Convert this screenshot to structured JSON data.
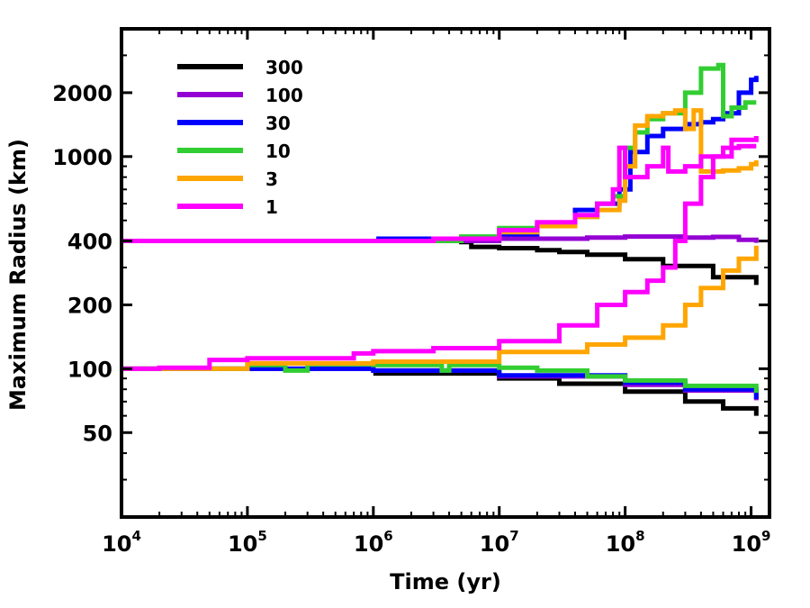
{
  "chart_data": {
    "type": "line",
    "xlabel": "Time (yr)",
    "ylabel": "Maximum Radius (km)",
    "xscale": "log",
    "yscale": "log",
    "xlim": [
      10000,
      1400000000
    ],
    "ylim": [
      20,
      4000
    ],
    "xticks": [
      {
        "value": 10000,
        "base": "10",
        "exp": "4"
      },
      {
        "value": 100000,
        "base": "10",
        "exp": "5"
      },
      {
        "value": 1000000,
        "base": "10",
        "exp": "6"
      },
      {
        "value": 10000000,
        "base": "10",
        "exp": "7"
      },
      {
        "value": 100000000,
        "base": "10",
        "exp": "8"
      },
      {
        "value": 1000000000,
        "base": "10",
        "exp": "9"
      }
    ],
    "yticks": [
      {
        "value": 50,
        "label": "50"
      },
      {
        "value": 100,
        "label": "100"
      },
      {
        "value": 200,
        "label": "200"
      },
      {
        "value": 400,
        "label": "400"
      },
      {
        "value": 1000,
        "label": "1000"
      },
      {
        "value": 2000,
        "label": "2000"
      }
    ],
    "legend_position": "top-left",
    "series": [
      {
        "name": "300",
        "color": "#000000",
        "runs": [
          [
            [
              10000,
              400
            ],
            [
              1000000,
              400
            ],
            [
              5000000,
              395
            ],
            [
              6000000,
              375
            ],
            [
              10000000,
              370
            ],
            [
              20000000,
              362
            ],
            [
              30000000,
              355
            ],
            [
              50000000,
              345
            ],
            [
              100000000,
              328
            ],
            [
              200000000,
              305
            ],
            [
              500000000,
              270
            ],
            [
              1100000000,
              248
            ]
          ],
          [
            [
              1000000,
              95
            ],
            [
              10000000,
              90
            ],
            [
              30000000,
              85
            ],
            [
              100000000,
              78
            ],
            [
              300000000,
              70
            ],
            [
              600000000,
              65
            ],
            [
              1100000000,
              60
            ]
          ]
        ]
      },
      {
        "name": "100",
        "color": "#9400d3",
        "runs": [
          [
            [
              10000,
              400
            ],
            [
              3000000,
              400
            ],
            [
              10000000,
              410
            ],
            [
              50000000,
              415
            ],
            [
              100000000,
              420
            ],
            [
              300000000,
              415
            ],
            [
              500000000,
              418
            ],
            [
              800000000,
              405
            ],
            [
              1100000000,
              392
            ]
          ],
          [
            [
              10000,
              100
            ],
            [
              1000000,
              98
            ],
            [
              10000000,
              92
            ],
            [
              100000000,
              84
            ],
            [
              300000000,
              79
            ],
            [
              1100000000,
              71
            ]
          ]
        ]
      },
      {
        "name": "30",
        "color": "#0000ff",
        "runs": [
          [
            [
              10000,
              400
            ],
            [
              1000000,
              400
            ],
            [
              1100000,
              410
            ],
            [
              5000000,
              415
            ],
            [
              10000000,
              430
            ],
            [
              20000000,
              470
            ],
            [
              40000000,
              560
            ],
            [
              60000000,
              600
            ],
            [
              90000000,
              700
            ],
            [
              110000000,
              1050
            ],
            [
              150000000,
              1250
            ],
            [
              200000000,
              1350
            ],
            [
              300000000,
              1420
            ],
            [
              400000000,
              1450
            ],
            [
              500000000,
              1500
            ],
            [
              600000000,
              1600
            ],
            [
              800000000,
              2000
            ],
            [
              1000000000,
              2300
            ],
            [
              1100000000,
              2400
            ]
          ],
          [
            [
              10000,
              100
            ],
            [
              1000000,
              98
            ],
            [
              10000000,
              93
            ],
            [
              100000000,
              86
            ],
            [
              300000000,
              80
            ],
            [
              1100000000,
              72
            ]
          ]
        ]
      },
      {
        "name": "10",
        "color": "#32cd32",
        "runs": [
          [
            [
              10000,
              400
            ],
            [
              2000000,
              400
            ],
            [
              5000000,
              420
            ],
            [
              10000000,
              460
            ],
            [
              20000000,
              480
            ],
            [
              40000000,
              520
            ],
            [
              60000000,
              600
            ],
            [
              80000000,
              650
            ],
            [
              100000000,
              1100
            ],
            [
              120000000,
              1300
            ],
            [
              150000000,
              1500
            ],
            [
              200000000,
              1600
            ],
            [
              300000000,
              2000
            ],
            [
              400000000,
              2600
            ],
            [
              550000000,
              2700
            ],
            [
              600000000,
              1550
            ],
            [
              700000000,
              1700
            ],
            [
              900000000,
              1800
            ],
            [
              1100000000,
              1800
            ]
          ],
          [
            [
              10000,
              100
            ],
            [
              100000,
              104
            ],
            [
              200000,
              98
            ],
            [
              300000,
              105
            ],
            [
              1000000,
              104
            ],
            [
              3000000,
              104
            ],
            [
              3500000,
              98
            ],
            [
              4000000,
              104
            ],
            [
              10000000,
              101
            ],
            [
              20000000,
              98
            ],
            [
              50000000,
              92
            ],
            [
              100000000,
              88
            ],
            [
              300000000,
              83
            ],
            [
              1100000000,
              77
            ]
          ]
        ]
      },
      {
        "name": "3",
        "color": "#ffa500",
        "runs": [
          [
            [
              10000,
              400
            ],
            [
              1000000,
              400
            ],
            [
              3000000,
              410
            ],
            [
              10000000,
              440
            ],
            [
              20000000,
              470
            ],
            [
              40000000,
              520
            ],
            [
              60000000,
              560
            ],
            [
              90000000,
              620
            ],
            [
              100000000,
              900
            ],
            [
              120000000,
              1400
            ],
            [
              150000000,
              1550
            ],
            [
              200000000,
              1600
            ],
            [
              250000000,
              1650
            ],
            [
              300000000,
              1350
            ],
            [
              350000000,
              1650
            ],
            [
              400000000,
              850
            ],
            [
              600000000,
              860
            ],
            [
              800000000,
              880
            ],
            [
              1000000000,
              920
            ],
            [
              1100000000,
              960
            ]
          ],
          [
            [
              10000,
              100
            ],
            [
              100000,
              106
            ],
            [
              1000000,
              108
            ],
            [
              10000000,
              120
            ],
            [
              50000000,
              130
            ],
            [
              100000000,
              140
            ],
            [
              200000000,
              160
            ],
            [
              300000000,
              200
            ],
            [
              400000000,
              240
            ],
            [
              600000000,
              290
            ],
            [
              800000000,
              330
            ],
            [
              1100000000,
              380
            ]
          ]
        ]
      },
      {
        "name": "1",
        "color": "#ff00ff",
        "runs": [
          [
            [
              10000,
              400
            ],
            [
              1000000,
              400
            ],
            [
              3000000,
              410
            ],
            [
              10000000,
              450
            ],
            [
              20000000,
              490
            ],
            [
              40000000,
              530
            ],
            [
              60000000,
              600
            ],
            [
              80000000,
              700
            ],
            [
              90000000,
              1100
            ],
            [
              100000000,
              800
            ],
            [
              150000000,
              900
            ],
            [
              200000000,
              1100
            ],
            [
              220000000,
              850
            ],
            [
              300000000,
              900
            ],
            [
              400000000,
              1000
            ],
            [
              600000000,
              1100
            ],
            [
              800000000,
              1120
            ],
            [
              1100000000,
              1120
            ]
          ],
          [
            [
              10000,
              100
            ],
            [
              20000,
              101
            ],
            [
              50000,
              110
            ],
            [
              100000,
              112
            ],
            [
              300000,
              112
            ],
            [
              700000,
              118
            ],
            [
              1000000,
              121
            ],
            [
              3000000,
              125
            ],
            [
              10000000,
              135
            ],
            [
              30000000,
              160
            ],
            [
              60000000,
              200
            ],
            [
              100000000,
              230
            ],
            [
              150000000,
              260
            ],
            [
              200000000,
              300
            ],
            [
              250000000,
              400
            ],
            [
              300000000,
              600
            ],
            [
              400000000,
              800
            ],
            [
              500000000,
              1000
            ],
            [
              700000000,
              1200
            ],
            [
              1100000000,
              1250
            ]
          ]
        ]
      }
    ]
  }
}
